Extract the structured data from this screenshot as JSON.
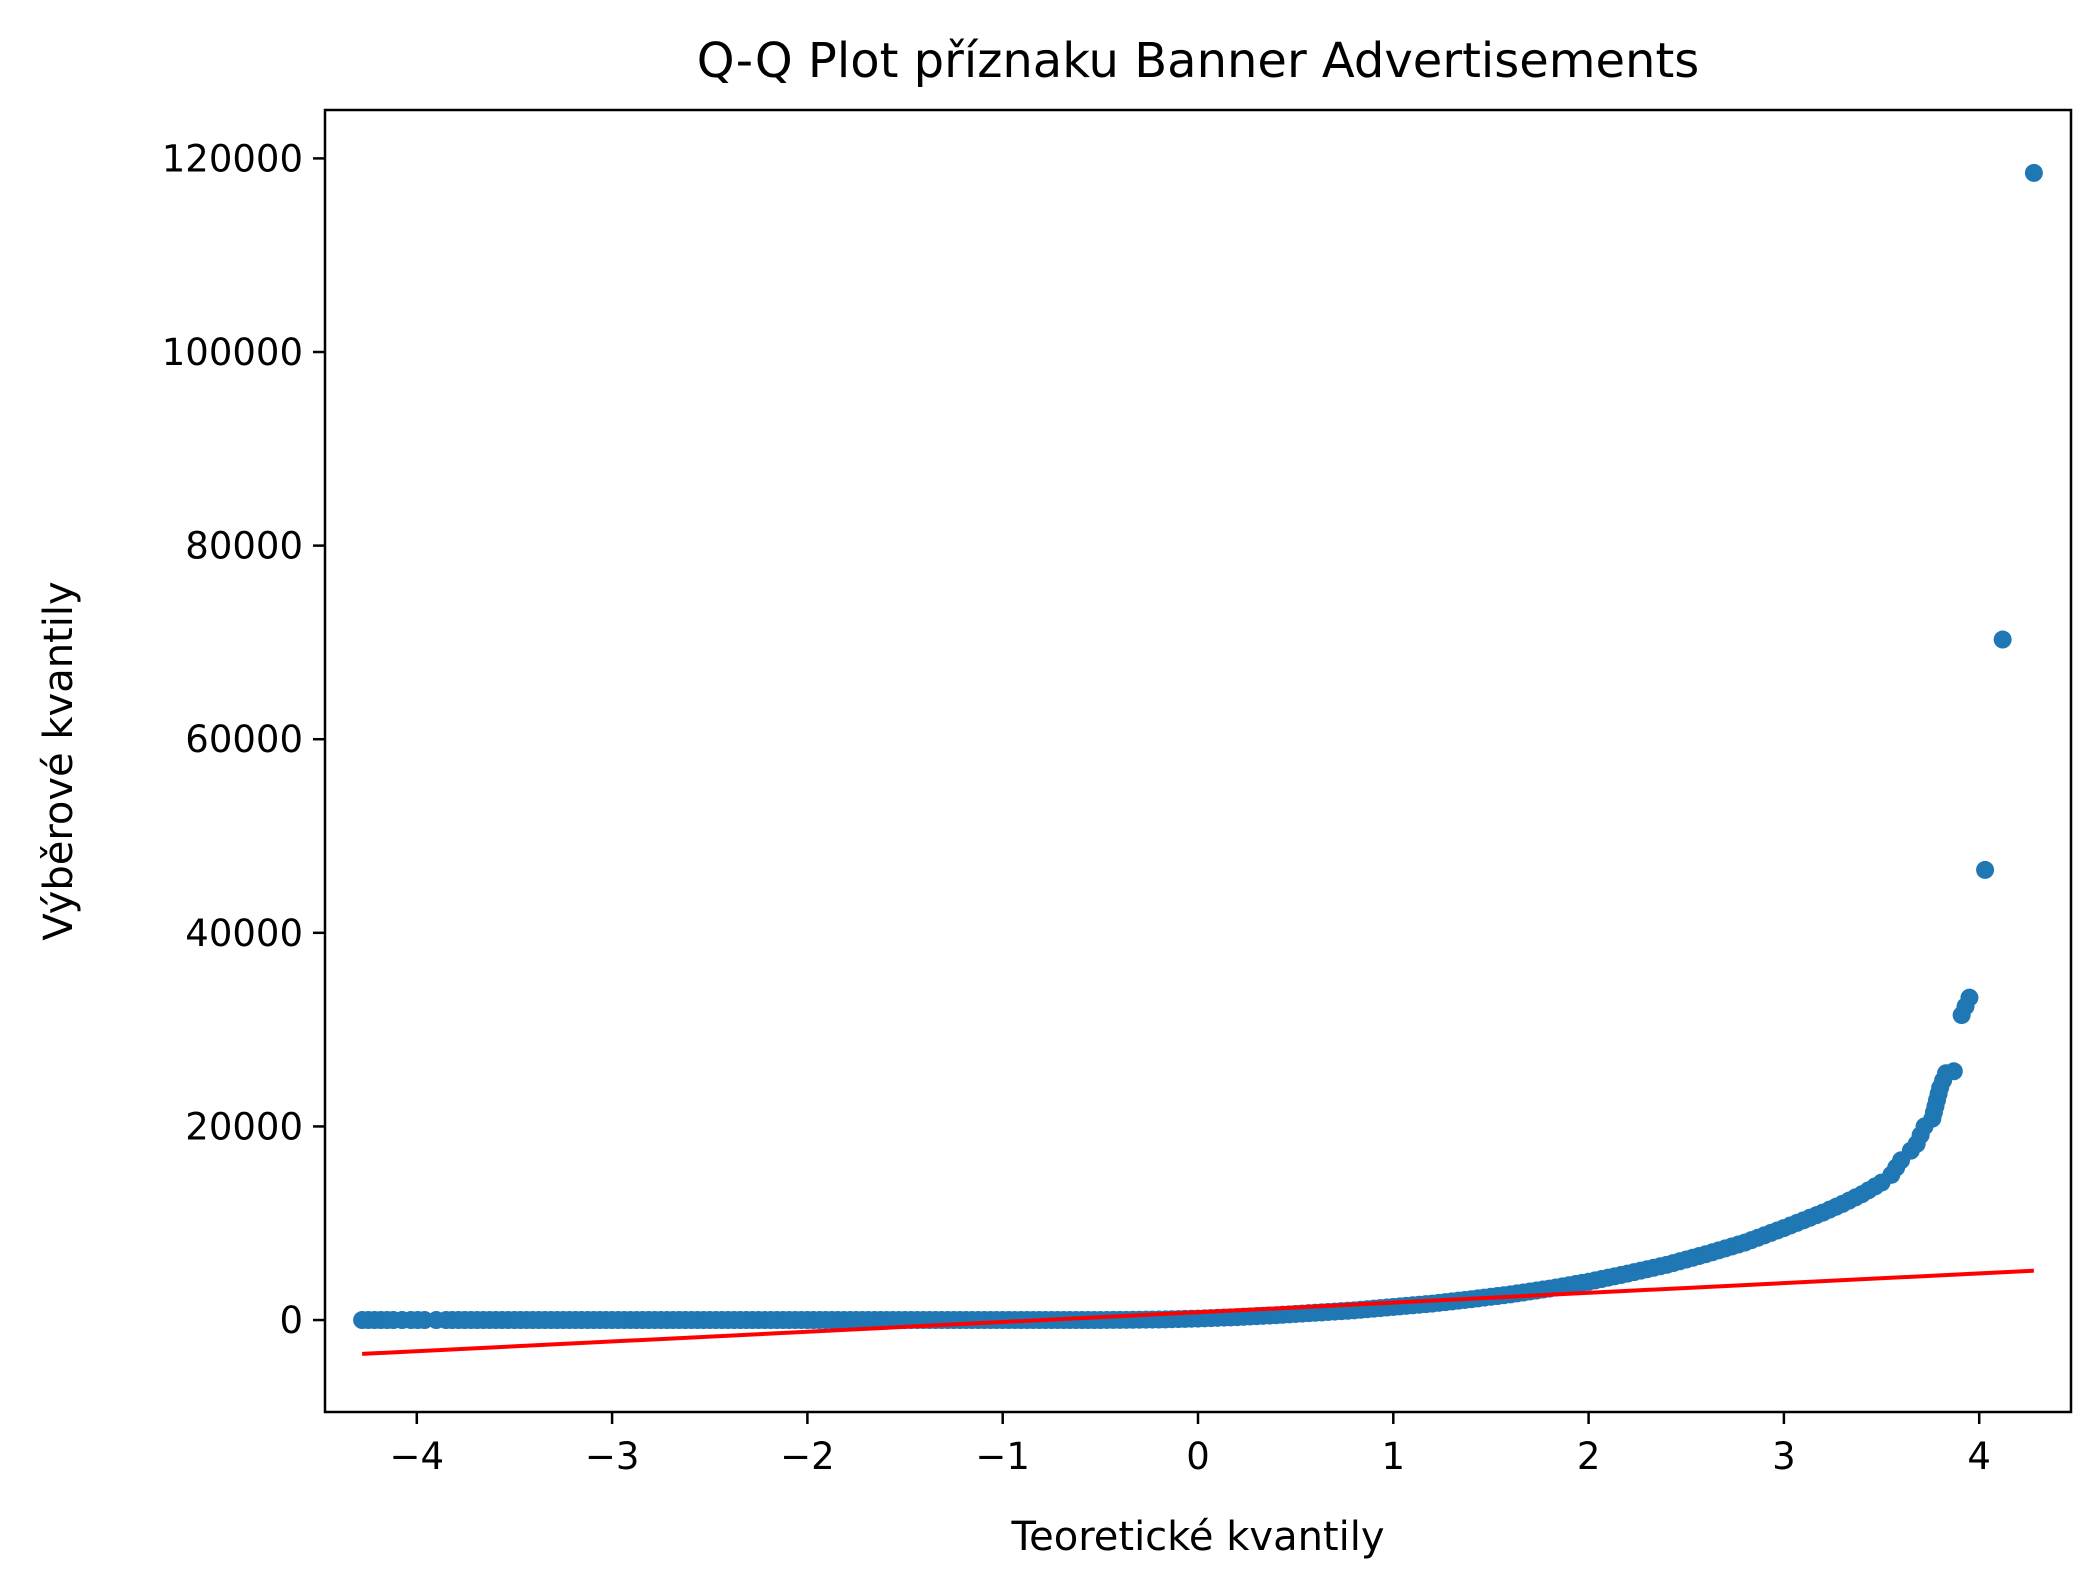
{
  "chart_data": {
    "type": "scatter",
    "title": "Q-Q Plot příznaku Banner Advertisements",
    "xlabel": "Teoretické kvantily",
    "ylabel": "Výběrové kvantily",
    "xlim": [
      -4.47,
      4.47
    ],
    "ylim": [
      -9500,
      125000
    ],
    "xticks": [
      -4,
      -3,
      -2,
      -1,
      0,
      1,
      2,
      3,
      4
    ],
    "xtick_labels": [
      "−4",
      "−3",
      "−2",
      "−1",
      "0",
      "1",
      "2",
      "3",
      "4"
    ],
    "yticks": [
      0,
      20000,
      40000,
      60000,
      80000,
      100000,
      120000
    ],
    "ytick_labels": [
      "0",
      "20000",
      "40000",
      "60000",
      "80000",
      "100000",
      "120000"
    ],
    "grid": false,
    "colors": {
      "points": "#1f77b4",
      "fit_line": "#ff0000",
      "axes": "#000000"
    },
    "series": [
      {
        "kind": "sample-quantiles",
        "points": [
          [
            -4.28,
            0
          ],
          [
            -4.12,
            0
          ],
          [
            -4.03,
            0
          ],
          [
            -3.96,
            0
          ],
          [
            -3.9,
            0
          ],
          [
            -3.85,
            0
          ],
          [
            -3.5,
            0
          ],
          [
            -3.0,
            0
          ],
          [
            -2.5,
            0
          ],
          [
            -2.0,
            0
          ],
          [
            -1.5,
            0
          ],
          [
            -1.0,
            0
          ],
          [
            -0.5,
            0
          ],
          [
            -0.2,
            50
          ],
          [
            0.0,
            150
          ],
          [
            0.2,
            300
          ],
          [
            0.4,
            500
          ],
          [
            0.6,
            750
          ],
          [
            0.8,
            1000
          ],
          [
            1.0,
            1350
          ],
          [
            1.2,
            1700
          ],
          [
            1.4,
            2150
          ],
          [
            1.6,
            2650
          ],
          [
            1.8,
            3250
          ],
          [
            2.0,
            3950
          ],
          [
            2.2,
            4800
          ],
          [
            2.4,
            5700
          ],
          [
            2.6,
            6800
          ],
          [
            2.8,
            8000
          ],
          [
            3.0,
            9500
          ],
          [
            3.1,
            10300
          ],
          [
            3.2,
            11100
          ],
          [
            3.3,
            12000
          ],
          [
            3.4,
            13000
          ],
          [
            3.5,
            14200
          ],
          [
            3.55,
            15000
          ],
          [
            3.6,
            16500
          ],
          [
            3.65,
            17500
          ],
          [
            3.68,
            18200
          ],
          [
            3.72,
            20000
          ],
          [
            3.76,
            20800
          ],
          [
            3.8,
            24000
          ],
          [
            3.83,
            25500
          ],
          [
            3.87,
            25700
          ],
          [
            3.91,
            31500
          ],
          [
            3.95,
            33300
          ],
          [
            4.03,
            46500
          ],
          [
            4.12,
            70300
          ],
          [
            4.28,
            118500
          ]
        ]
      },
      {
        "kind": "fit-line",
        "points": [
          [
            -4.28,
            -3500
          ],
          [
            4.28,
            5100
          ]
        ]
      }
    ]
  }
}
